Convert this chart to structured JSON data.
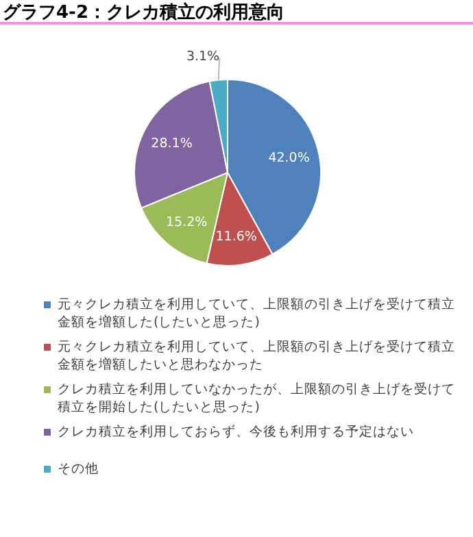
{
  "chart_data": {
    "type": "pie",
    "title": "グラフ4-2：クレカ積立の利用意向",
    "categories": [
      "元々クレカ積立を利用していて、上限額の引き上げを受けて積立金額を増額した(したいと思った)",
      "元々クレカ積立を利用していて、上限額の引き上げを受けて積立金額を増額したいと思わなかった",
      "クレカ積立を利用していなかったが、上限額の引き上げを受けて積立を開始した(したいと思った)",
      "クレカ積立を利用しておらず、今後も利用する予定はない",
      "その他"
    ],
    "values": [
      42.0,
      11.6,
      15.2,
      28.1,
      3.1
    ],
    "colors": [
      "#4f81bd",
      "#c0504d",
      "#9bbb59",
      "#8064a2",
      "#4bacc6"
    ],
    "value_labels": [
      "42.0%",
      "11.6%",
      "15.2%",
      "28.1%",
      "3.1%"
    ],
    "legend": "bottom"
  }
}
